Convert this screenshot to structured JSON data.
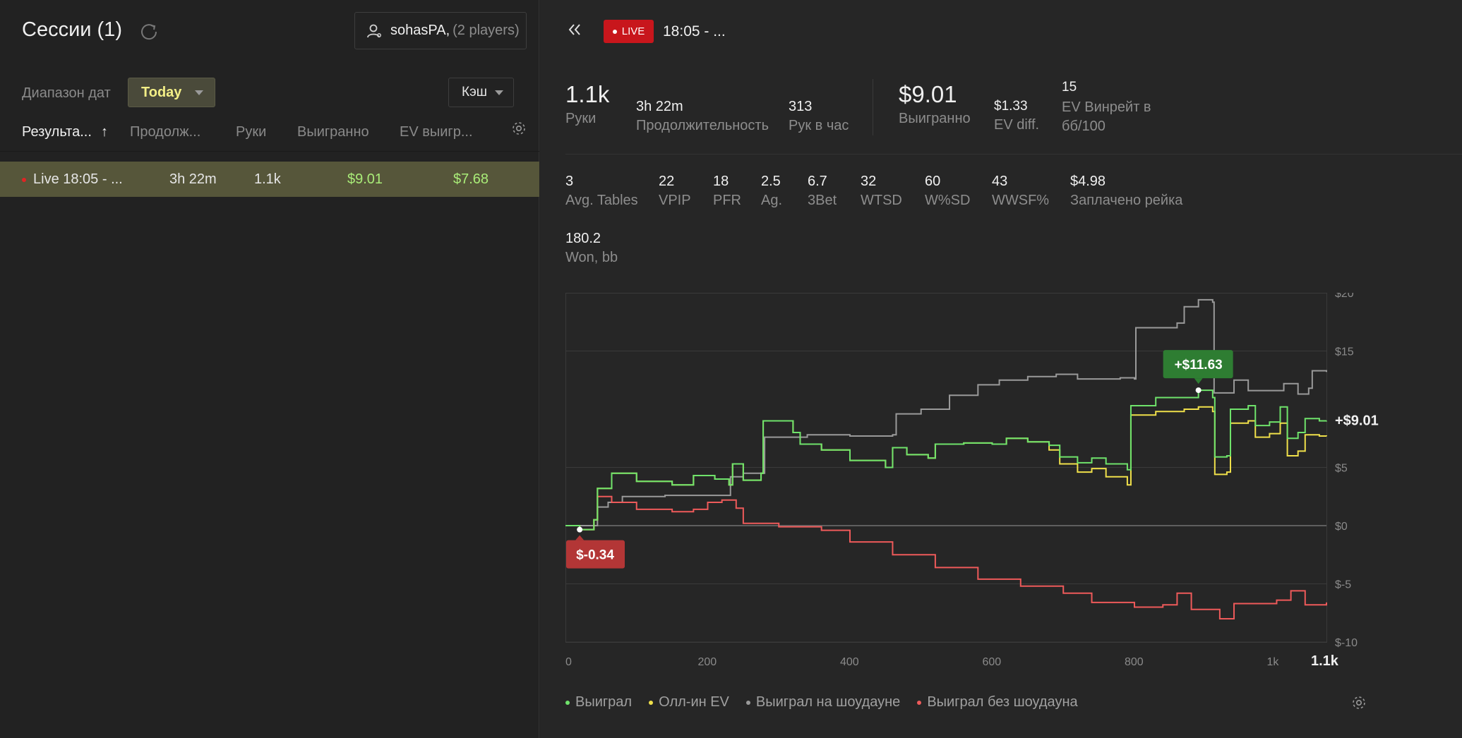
{
  "left": {
    "title": "Сессии (1)",
    "player": {
      "name": "sohasPA,",
      "count": "(2 players)"
    },
    "date_range_label": "Диапазон дат",
    "date_range_value": "Today",
    "game_type": "Кэш",
    "columns": [
      "Результа...",
      "Продолж...",
      "Руки",
      "Выигранно",
      "EV выигр..."
    ],
    "sort_arrow": "↑",
    "sessions": [
      {
        "name": "Live 18:05 - ...",
        "duration": "3h 22m",
        "hands": "1.1k",
        "won": "$9.01",
        "ev_won": "$7.68"
      }
    ]
  },
  "right": {
    "live_label": "LIVE",
    "session_title": "18:05 - ...",
    "stats_top": [
      {
        "value": "1.1k",
        "label": "Руки"
      },
      {
        "value": "3h 22m",
        "label": "Продолжительность"
      },
      {
        "value": "313",
        "label": "Рук в час"
      },
      {
        "value": "$9.01",
        "label": "Выигранно"
      },
      {
        "value": "$1.33",
        "label": "EV diff."
      },
      {
        "value": "15",
        "label": "EV Винрейт в бб/100"
      }
    ],
    "stats_row2": [
      {
        "value": "3",
        "label": "Avg. Tables"
      },
      {
        "value": "22",
        "label": "VPIP"
      },
      {
        "value": "18",
        "label": "PFR"
      },
      {
        "value": "2.5",
        "label": "Ag."
      },
      {
        "value": "6.7",
        "label": "3Bet"
      },
      {
        "value": "32",
        "label": "WTSD"
      },
      {
        "value": "60",
        "label": "W%SD"
      },
      {
        "value": "43",
        "label": "WWSF%"
      },
      {
        "value": "$4.98",
        "label": "Заплачено рейка"
      }
    ],
    "stats_row3": [
      {
        "value": "180.2",
        "label": "Won, bb"
      }
    ],
    "legend": [
      {
        "label": "Выиграл",
        "color": "#6fe36b"
      },
      {
        "label": "Олл-ин EV",
        "color": "#f0e04a"
      },
      {
        "label": "Выиграл на шоудауне",
        "color": "#9a9a9a"
      },
      {
        "label": "Выиграл без шоудауна",
        "color": "#ee5a5a"
      }
    ]
  },
  "chart_data": {
    "type": "line",
    "xlim": [
      0,
      1070
    ],
    "ylim": [
      -10,
      20
    ],
    "y_ticks": [
      -10,
      -5,
      0,
      5,
      15,
      20
    ],
    "y_tick_labels": [
      "$-10",
      "$-5",
      "$0",
      "$5",
      "$15",
      "$20"
    ],
    "x_ticks": [
      0,
      200,
      400,
      600,
      800,
      1000
    ],
    "x_tick_labels": [
      "0",
      "200",
      "400",
      "600",
      "800",
      "1k"
    ],
    "x_end_label": "1.1k",
    "end_value_label": "+$9.01",
    "max_label": {
      "x": 890,
      "y": 11.63,
      "text": "+$11.63"
    },
    "min_label": {
      "x": 20,
      "y": -0.34,
      "text": "$-0.34"
    },
    "grid": true,
    "series": [
      {
        "name": "Выиграл",
        "color": "#6fe36b",
        "points": [
          [
            0,
            0
          ],
          [
            20,
            -0.34
          ],
          [
            40,
            0.5
          ],
          [
            45,
            3.2
          ],
          [
            65,
            4.5
          ],
          [
            100,
            3.8
          ],
          [
            150,
            3.5
          ],
          [
            180,
            4.3
          ],
          [
            210,
            4.0
          ],
          [
            230,
            3.5
          ],
          [
            235,
            5.3
          ],
          [
            250,
            3.9
          ],
          [
            275,
            4.5
          ],
          [
            278,
            9.0
          ],
          [
            320,
            8.0
          ],
          [
            330,
            7.0
          ],
          [
            360,
            6.5
          ],
          [
            400,
            5.6
          ],
          [
            450,
            5.0
          ],
          [
            460,
            6.7
          ],
          [
            480,
            6.1
          ],
          [
            510,
            5.8
          ],
          [
            520,
            7.0
          ],
          [
            560,
            7.1
          ],
          [
            600,
            7.0
          ],
          [
            620,
            7.5
          ],
          [
            650,
            7.2
          ],
          [
            680,
            6.9
          ],
          [
            695,
            5.9
          ],
          [
            720,
            5.4
          ],
          [
            740,
            5.8
          ],
          [
            760,
            5.3
          ],
          [
            790,
            4.8
          ],
          [
            795,
            10.3
          ],
          [
            830,
            11.0
          ],
          [
            870,
            11.0
          ],
          [
            890,
            11.63
          ],
          [
            910,
            11.0
          ],
          [
            913,
            5.9
          ],
          [
            930,
            6.0
          ],
          [
            935,
            10.0
          ],
          [
            960,
            10.3
          ],
          [
            970,
            8.6
          ],
          [
            990,
            8.9
          ],
          [
            1005,
            10.2
          ],
          [
            1015,
            7.5
          ],
          [
            1030,
            8.0
          ],
          [
            1040,
            9.2
          ],
          [
            1060,
            9.0
          ],
          [
            1070,
            9.01
          ]
        ]
      },
      {
        "name": "Олл-ин EV",
        "color": "#f0e04a",
        "points": [
          [
            0,
            0
          ],
          [
            20,
            -0.34
          ],
          [
            40,
            0.5
          ],
          [
            45,
            3.2
          ],
          [
            65,
            4.5
          ],
          [
            100,
            3.8
          ],
          [
            150,
            3.5
          ],
          [
            180,
            4.3
          ],
          [
            210,
            4.0
          ],
          [
            230,
            3.5
          ],
          [
            235,
            5.3
          ],
          [
            250,
            3.9
          ],
          [
            275,
            4.5
          ],
          [
            278,
            9.0
          ],
          [
            320,
            8.0
          ],
          [
            330,
            7.0
          ],
          [
            360,
            6.5
          ],
          [
            400,
            5.6
          ],
          [
            450,
            5.0
          ],
          [
            460,
            6.7
          ],
          [
            480,
            6.1
          ],
          [
            510,
            5.8
          ],
          [
            520,
            7.0
          ],
          [
            560,
            7.1
          ],
          [
            600,
            7.0
          ],
          [
            620,
            7.5
          ],
          [
            650,
            7.2
          ],
          [
            680,
            6.5
          ],
          [
            695,
            5.3
          ],
          [
            720,
            4.6
          ],
          [
            740,
            4.9
          ],
          [
            760,
            4.2
          ],
          [
            790,
            3.5
          ],
          [
            795,
            9.5
          ],
          [
            830,
            9.8
          ],
          [
            870,
            10.0
          ],
          [
            890,
            10.2
          ],
          [
            910,
            9.8
          ],
          [
            913,
            4.4
          ],
          [
            930,
            4.6
          ],
          [
            935,
            8.8
          ],
          [
            960,
            9.0
          ],
          [
            970,
            7.6
          ],
          [
            990,
            7.9
          ],
          [
            1005,
            8.8
          ],
          [
            1015,
            6.0
          ],
          [
            1030,
            6.4
          ],
          [
            1040,
            7.8
          ],
          [
            1060,
            7.7
          ],
          [
            1070,
            7.68
          ]
        ]
      },
      {
        "name": "Выиграл на шоудауне",
        "color": "#9a9a9a",
        "points": [
          [
            0,
            0
          ],
          [
            30,
            0
          ],
          [
            45,
            1.6
          ],
          [
            60,
            2.0
          ],
          [
            80,
            2.5
          ],
          [
            140,
            2.6
          ],
          [
            230,
            2.6
          ],
          [
            232,
            4.2
          ],
          [
            250,
            4.5
          ],
          [
            280,
            7.6
          ],
          [
            340,
            7.8
          ],
          [
            400,
            7.7
          ],
          [
            460,
            7.8
          ],
          [
            465,
            9.6
          ],
          [
            500,
            10.0
          ],
          [
            540,
            11.2
          ],
          [
            580,
            12.1
          ],
          [
            610,
            12.5
          ],
          [
            650,
            12.8
          ],
          [
            690,
            13.0
          ],
          [
            720,
            12.6
          ],
          [
            780,
            12.7
          ],
          [
            800,
            12.6
          ],
          [
            802,
            17.0
          ],
          [
            860,
            17.4
          ],
          [
            870,
            18.8
          ],
          [
            890,
            19.4
          ],
          [
            910,
            19.2
          ],
          [
            912,
            11.4
          ],
          [
            940,
            12.5
          ],
          [
            960,
            11.6
          ],
          [
            1000,
            11.6
          ],
          [
            1010,
            12.2
          ],
          [
            1030,
            11.3
          ],
          [
            1045,
            11.8
          ],
          [
            1050,
            13.3
          ],
          [
            1070,
            13.2
          ]
        ]
      },
      {
        "name": "Выиграл без шоудауна",
        "color": "#ee5a5a",
        "points": [
          [
            0,
            0
          ],
          [
            20,
            -0.34
          ],
          [
            40,
            0.5
          ],
          [
            45,
            2.5
          ],
          [
            65,
            2.0
          ],
          [
            100,
            1.4
          ],
          [
            150,
            1.2
          ],
          [
            180,
            1.4
          ],
          [
            200,
            2.0
          ],
          [
            220,
            2.2
          ],
          [
            240,
            1.5
          ],
          [
            250,
            0.2
          ],
          [
            300,
            -0.1
          ],
          [
            360,
            -0.4
          ],
          [
            400,
            -1.4
          ],
          [
            460,
            -2.5
          ],
          [
            520,
            -3.6
          ],
          [
            580,
            -4.6
          ],
          [
            640,
            -5.2
          ],
          [
            700,
            -5.8
          ],
          [
            740,
            -6.6
          ],
          [
            800,
            -7.0
          ],
          [
            840,
            -6.8
          ],
          [
            860,
            -5.8
          ],
          [
            880,
            -7.2
          ],
          [
            920,
            -8.0
          ],
          [
            940,
            -6.7
          ],
          [
            1000,
            -6.4
          ],
          [
            1020,
            -5.6
          ],
          [
            1040,
            -6.8
          ],
          [
            1070,
            -6.6
          ]
        ]
      }
    ]
  }
}
